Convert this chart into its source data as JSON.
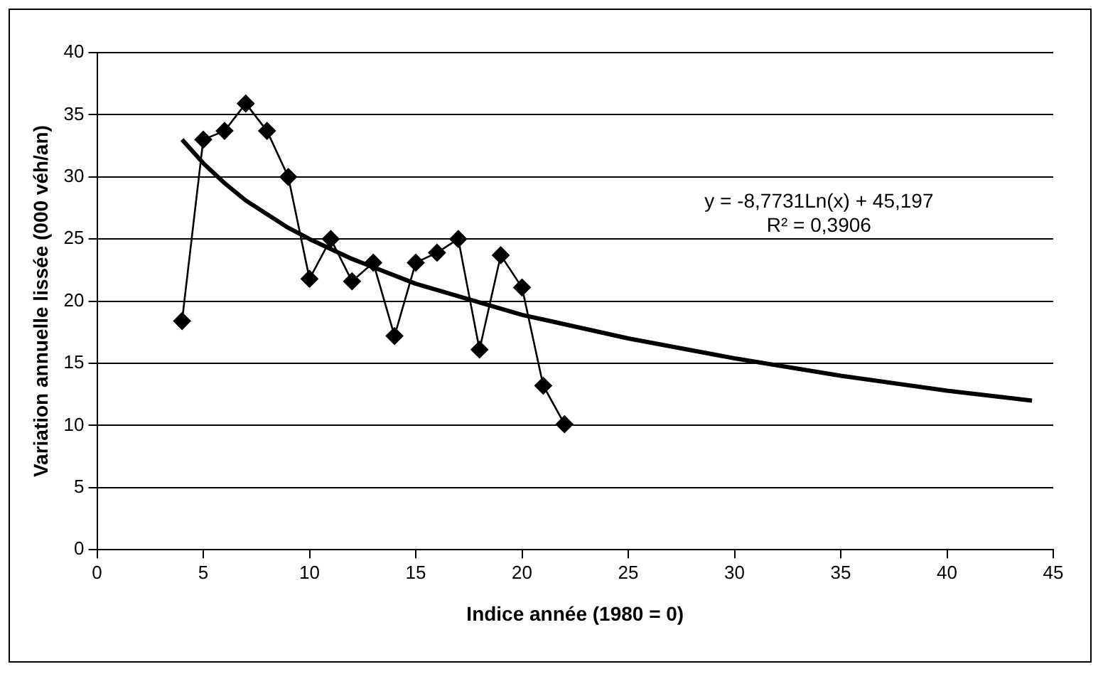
{
  "chart_data": {
    "type": "line",
    "xlabel": "Indice année (1980 = 0)",
    "ylabel": "Variation annuelle lissée (000 véh/an)",
    "xlim": [
      0,
      45
    ],
    "xticks": [
      0,
      5,
      10,
      15,
      20,
      25,
      30,
      35,
      40,
      45
    ],
    "ylim": [
      0,
      40
    ],
    "yticks": [
      0,
      5,
      10,
      15,
      20,
      25,
      30,
      35,
      40
    ],
    "grid": "y",
    "legend": false,
    "marker": "diamond",
    "line_style": "solid",
    "annotations": [
      "y = -8,7731Ln(x) + 45,197",
      "R² = 0,3906"
    ],
    "series": [
      {
        "color": "#000000",
        "x": [
          4,
          5,
          6,
          7,
          8,
          9,
          10,
          11,
          12,
          13,
          14,
          15,
          16,
          17,
          18,
          19,
          20,
          21,
          22
        ],
        "values": [
          18.4,
          33.0,
          33.7,
          35.9,
          33.7,
          30.0,
          21.8,
          25.0,
          21.6,
          23.1,
          17.2,
          23.1,
          23.9,
          25.0,
          16.1,
          23.7,
          21.1,
          13.2,
          10.1
        ]
      },
      {
        "type": "line",
        "marker": "none",
        "color": "#000000",
        "x": [
          4,
          5,
          6,
          7,
          8,
          9,
          10,
          12,
          15,
          20,
          25,
          30,
          35,
          40,
          44
        ],
        "values": [
          33.0,
          31.1,
          29.5,
          28.1,
          27.0,
          25.9,
          25.0,
          23.4,
          21.4,
          18.9,
          17.0,
          15.4,
          14.0,
          12.8,
          12.0
        ]
      }
    ]
  }
}
